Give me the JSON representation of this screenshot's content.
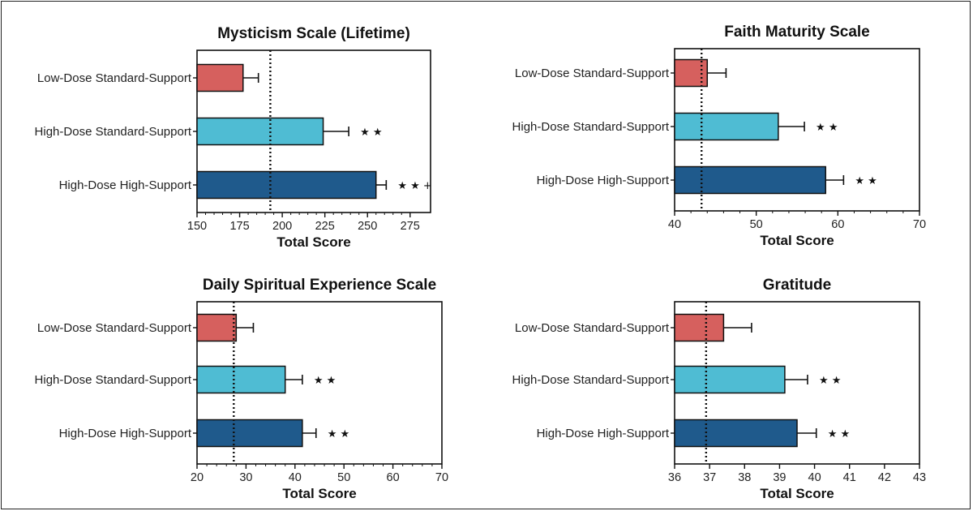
{
  "colors": {
    "low_dose_standard": "#d6605e",
    "high_dose_standard": "#4fbcd3",
    "high_dose_high": "#1f5a8c",
    "axis": "#111111"
  },
  "chart_data": [
    {
      "type": "bar",
      "orientation": "horizontal",
      "title": "Mysticism Scale (Lifetime)",
      "xlabel": "Total Score",
      "categories": [
        "Low-Dose Standard-Support",
        "High-Dose Standard-Support",
        "High-Dose High-Support"
      ],
      "values": [
        177,
        224,
        255
      ],
      "errors": [
        9,
        15,
        6
      ],
      "significance": [
        "",
        "★ ★",
        "★ ★ +"
      ],
      "reference_line": 193,
      "xlim": [
        150,
        287
      ],
      "ticks": [
        150,
        175,
        200,
        225,
        250,
        275
      ],
      "tick_labels": [
        "150",
        "175",
        "200",
        "225",
        "250",
        "275"
      ],
      "grid": false
    },
    {
      "type": "bar",
      "orientation": "horizontal",
      "title": "Faith Maturity Scale",
      "xlabel": "Total Score",
      "categories": [
        "Low-Dose Standard-Support",
        "High-Dose Standard-Support",
        "High-Dose High-Support"
      ],
      "values": [
        44,
        52.7,
        58.5
      ],
      "errors": [
        2.3,
        3.2,
        2.2
      ],
      "significance": [
        "",
        "★ ★",
        "★ ★"
      ],
      "reference_line": 43.3,
      "xlim": [
        40,
        70
      ],
      "ticks": [
        40,
        50,
        60,
        70
      ],
      "tick_labels": [
        "40",
        "50",
        "60",
        "70"
      ],
      "grid": false
    },
    {
      "type": "bar",
      "orientation": "horizontal",
      "title": "Daily Spiritual Experience Scale",
      "xlabel": "Total Score",
      "categories": [
        "Low-Dose Standard-Support",
        "High-Dose Standard-Support",
        "High-Dose High-Support"
      ],
      "values": [
        28,
        38,
        41.5
      ],
      "errors": [
        3.5,
        3.5,
        2.8
      ],
      "significance": [
        "",
        "★ ★",
        "★ ★"
      ],
      "reference_line": 27.5,
      "xlim": [
        20,
        70
      ],
      "ticks": [
        20,
        30,
        40,
        50,
        60,
        70
      ],
      "tick_labels": [
        "20",
        "30",
        "40",
        "50",
        "60",
        "70"
      ],
      "grid": false
    },
    {
      "type": "bar",
      "orientation": "horizontal",
      "title": "Gratitude",
      "xlabel": "Total Score",
      "categories": [
        "Low-Dose Standard-Support",
        "High-Dose Standard-Support",
        "High-Dose High-Support"
      ],
      "values": [
        37.4,
        39.15,
        39.5
      ],
      "errors": [
        0.8,
        0.65,
        0.55
      ],
      "significance": [
        "",
        "★ ★",
        "★ ★"
      ],
      "reference_line": 36.9,
      "xlim": [
        36,
        43
      ],
      "ticks": [
        36,
        37,
        38,
        39,
        40,
        41,
        42,
        43
      ],
      "tick_labels": [
        "36",
        "37",
        "38",
        "39",
        "40",
        "41",
        "42",
        "43"
      ],
      "grid": false
    }
  ]
}
